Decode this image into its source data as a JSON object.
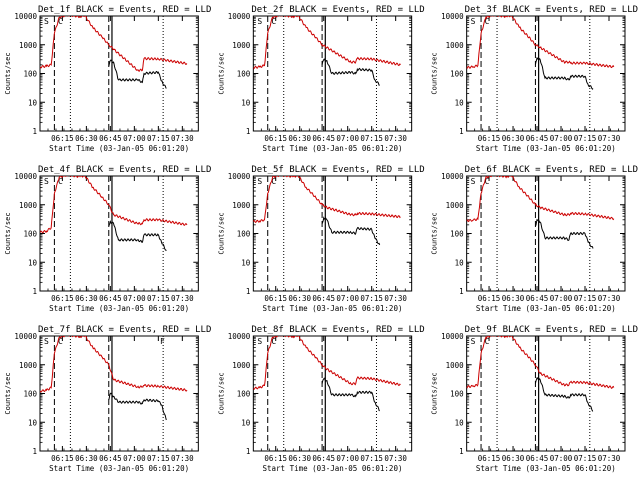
{
  "figure": {
    "background": "#ffffff",
    "events_color": "#000000",
    "lld_color": "#cc0000"
  },
  "chart_data": [
    {
      "type": "line",
      "title": "Det_1f  BLACK = Events, RED = LLD",
      "ylabel": "Counts/sec",
      "xlabel": "Start Time (03-Jan-05 06:01:20)",
      "yscale": "log",
      "ylim": [
        1,
        10000
      ],
      "ytick_labels": [
        "1",
        "10",
        "100",
        "1000",
        "10000"
      ],
      "xtick_labels": [
        "06:15",
        "06:30",
        "06:45",
        "07:00",
        "07:15",
        "07:30"
      ],
      "xlim": [
        "06:01",
        "07:40"
      ],
      "grid": false,
      "annotations": [
        "S",
        "C"
      ],
      "series": [
        {
          "name": "LLD",
          "x": [
            "06:01",
            "06:05",
            "06:08",
            "06:10",
            "06:13",
            "06:18",
            "06:26",
            "06:29",
            "06:34",
            "06:40",
            "06:44",
            "06:47",
            "07:02",
            "07:05",
            "07:06",
            "07:15",
            "07:33"
          ],
          "y": [
            170,
            180,
            200,
            2500,
            9000,
            11000,
            9500,
            10500,
            4000,
            1800,
            1000,
            700,
            130,
            130,
            330,
            320,
            220
          ]
        },
        {
          "name": "Events",
          "x": [
            "06:44",
            "06:45",
            "06:47",
            "06:50",
            "07:02",
            "07:05",
            "07:06",
            "07:15",
            "07:17",
            "07:20"
          ],
          "y": [
            180,
            280,
            250,
            60,
            60,
            50,
            100,
            110,
            55,
            30
          ]
        }
      ],
      "vlines_dashed": [
        "06:10",
        "06:44"
      ],
      "vlines_dotted": [
        "06:20",
        "07:18"
      ],
      "vlines_solid": [
        "06:46"
      ]
    },
    {
      "type": "line",
      "title": "Det_2f  BLACK = Events, RED = LLD",
      "ylabel": "Counts/sec",
      "xlabel": "Start Time (03-Jan-05 06:01:20)",
      "yscale": "log",
      "ylim": [
        1,
        10000
      ],
      "ytick_labels": [
        "1",
        "10",
        "100",
        "1000",
        "10000"
      ],
      "xtick_labels": [
        "06:15",
        "06:30",
        "06:45",
        "07:00",
        "07:15",
        "07:30"
      ],
      "xlim": [
        "06:01",
        "07:40"
      ],
      "grid": false,
      "annotations": [
        "S",
        "C"
      ],
      "series": [
        {
          "name": "LLD",
          "x": [
            "06:01",
            "06:05",
            "06:08",
            "06:10",
            "06:13",
            "06:18",
            "06:26",
            "06:29",
            "06:34",
            "06:40",
            "06:44",
            "06:47",
            "07:02",
            "07:05",
            "07:06",
            "07:15",
            "07:33"
          ],
          "y": [
            160,
            170,
            190,
            2500,
            9000,
            11000,
            9500,
            10500,
            4000,
            1800,
            1000,
            800,
            250,
            250,
            330,
            320,
            200
          ]
        },
        {
          "name": "Events",
          "x": [
            "06:44",
            "06:45",
            "06:47",
            "06:50",
            "07:02",
            "07:05",
            "07:06",
            "07:15",
            "07:17",
            "07:20"
          ],
          "y": [
            200,
            300,
            280,
            100,
            110,
            100,
            140,
            130,
            60,
            40
          ]
        }
      ],
      "vlines_dashed": [
        "06:10",
        "06:44"
      ],
      "vlines_dotted": [
        "06:20",
        "07:18"
      ],
      "vlines_solid": [
        "06:46"
      ]
    },
    {
      "type": "line",
      "title": "Det_3f  BLACK = Events, RED = LLD",
      "ylabel": "Counts/sec",
      "xlabel": "Start Time (03-Jan-05 06:01:20)",
      "yscale": "log",
      "ylim": [
        1,
        10000
      ],
      "ytick_labels": [
        "1",
        "10",
        "100",
        "1000",
        "10000"
      ],
      "xtick_labels": [
        "06:15",
        "06:30",
        "06:45",
        "07:00",
        "07:15",
        "07:30"
      ],
      "xlim": [
        "06:01",
        "07:40"
      ],
      "grid": false,
      "annotations": [
        "S",
        "C"
      ],
      "series": [
        {
          "name": "LLD",
          "x": [
            "06:01",
            "06:05",
            "06:08",
            "06:10",
            "06:13",
            "06:18",
            "06:26",
            "06:29",
            "06:34",
            "06:40",
            "06:44",
            "06:47",
            "07:02",
            "07:05",
            "07:06",
            "07:15",
            "07:33"
          ],
          "y": [
            160,
            170,
            190,
            2500,
            9000,
            11000,
            9500,
            10500,
            4000,
            1800,
            1000,
            800,
            250,
            250,
            230,
            230,
            170
          ]
        },
        {
          "name": "Events",
          "x": [
            "06:44",
            "06:45",
            "06:47",
            "06:50",
            "07:02",
            "07:05",
            "07:06",
            "07:15",
            "07:17",
            "07:20"
          ],
          "y": [
            200,
            350,
            300,
            70,
            70,
            60,
            80,
            80,
            40,
            30
          ]
        }
      ],
      "vlines_dashed": [
        "06:10",
        "06:44"
      ],
      "vlines_dotted": [
        "06:20",
        "07:18"
      ],
      "vlines_solid": [
        "06:46"
      ]
    },
    {
      "type": "line",
      "title": "Det_4f  BLACK = Events, RED = LLD",
      "ylabel": "Counts/sec",
      "xlabel": "Start Time (03-Jan-05 06:01:20)",
      "yscale": "log",
      "ylim": [
        1,
        10000
      ],
      "ytick_labels": [
        "1",
        "10",
        "100",
        "1000",
        "10000"
      ],
      "xtick_labels": [
        "06:15",
        "06:30",
        "06:45",
        "07:00",
        "07:15",
        "07:30"
      ],
      "xlim": [
        "06:01",
        "07:40"
      ],
      "grid": false,
      "annotations": [
        "S",
        "C"
      ],
      "series": [
        {
          "name": "LLD",
          "x": [
            "06:01",
            "06:05",
            "06:08",
            "06:10",
            "06:13",
            "06:18",
            "06:26",
            "06:29",
            "06:34",
            "06:40",
            "06:44",
            "06:47",
            "07:02",
            "07:05",
            "07:06",
            "07:15",
            "07:33"
          ],
          "y": [
            110,
            120,
            160,
            2500,
            9000,
            11000,
            9500,
            10500,
            4000,
            1800,
            1000,
            450,
            220,
            220,
            300,
            300,
            200
          ]
        },
        {
          "name": "Events",
          "x": [
            "06:44",
            "06:45",
            "06:47",
            "06:50",
            "07:02",
            "07:05",
            "07:06",
            "07:15",
            "07:17",
            "07:20"
          ],
          "y": [
            180,
            260,
            220,
            60,
            60,
            50,
            90,
            90,
            50,
            25
          ]
        }
      ],
      "vlines_dashed": [
        "06:10",
        "06:44"
      ],
      "vlines_dotted": [
        "06:20",
        "07:18"
      ],
      "vlines_solid": [
        "06:46"
      ]
    },
    {
      "type": "line",
      "title": "Det_5f  BLACK = Events, RED = LLD",
      "ylabel": "Counts/sec",
      "xlabel": "Start Time (03-Jan-05 06:01:20)",
      "yscale": "log",
      "ylim": [
        1,
        10000
      ],
      "ytick_labels": [
        "1",
        "10",
        "100",
        "1000",
        "10000"
      ],
      "xtick_labels": [
        "06:15",
        "06:30",
        "06:45",
        "07:00",
        "07:15",
        "07:30"
      ],
      "xlim": [
        "06:01",
        "07:40"
      ],
      "grid": false,
      "annotations": [
        "S",
        "C"
      ],
      "series": [
        {
          "name": "LLD",
          "x": [
            "06:01",
            "06:05",
            "06:08",
            "06:10",
            "06:13",
            "06:18",
            "06:26",
            "06:29",
            "06:34",
            "06:40",
            "06:44",
            "06:47",
            "07:02",
            "07:05",
            "07:06",
            "07:15",
            "07:33"
          ],
          "y": [
            260,
            270,
            300,
            2500,
            9000,
            11000,
            9500,
            10500,
            4000,
            1800,
            1000,
            800,
            450,
            450,
            500,
            480,
            380
          ]
        },
        {
          "name": "Events",
          "x": [
            "06:44",
            "06:45",
            "06:47",
            "06:50",
            "07:02",
            "07:05",
            "07:06",
            "07:15",
            "07:17",
            "07:20"
          ],
          "y": [
            220,
            350,
            300,
            110,
            110,
            100,
            150,
            140,
            70,
            40
          ]
        }
      ],
      "vlines_dashed": [
        "06:10",
        "06:44"
      ],
      "vlines_dotted": [
        "06:20",
        "07:18"
      ],
      "vlines_solid": [
        "06:46"
      ]
    },
    {
      "type": "line",
      "title": "Det_6f  BLACK = Events, RED = LLD",
      "ylabel": "Counts/sec",
      "xlabel": "Start Time (03-Jan-05 06:01:20)",
      "yscale": "log",
      "ylim": [
        1,
        10000
      ],
      "ytick_labels": [
        "1",
        "10",
        "100",
        "1000",
        "10000"
      ],
      "xtick_labels": [
        "06:15",
        "06:30",
        "06:45",
        "07:00",
        "07:15",
        "07:30"
      ],
      "xlim": [
        "06:01",
        "07:40"
      ],
      "grid": false,
      "annotations": [
        "S",
        "C"
      ],
      "series": [
        {
          "name": "LLD",
          "x": [
            "06:01",
            "06:05",
            "06:08",
            "06:10",
            "06:13",
            "06:18",
            "06:26",
            "06:29",
            "06:34",
            "06:40",
            "06:44",
            "06:47",
            "07:02",
            "07:05",
            "07:06",
            "07:15",
            "07:33"
          ],
          "y": [
            280,
            290,
            320,
            2500,
            9000,
            11000,
            9500,
            10500,
            4000,
            1800,
            1000,
            800,
            450,
            450,
            500,
            480,
            330
          ]
        },
        {
          "name": "Events",
          "x": [
            "06:44",
            "06:45",
            "06:47",
            "06:50",
            "07:02",
            "07:05",
            "07:06",
            "07:15",
            "07:17",
            "07:20"
          ],
          "y": [
            180,
            300,
            250,
            70,
            70,
            60,
            100,
            100,
            50,
            30
          ]
        }
      ],
      "vlines_dashed": [
        "06:10",
        "06:44"
      ],
      "vlines_dotted": [
        "06:20",
        "07:18"
      ],
      "vlines_solid": [
        "06:46"
      ]
    },
    {
      "type": "line",
      "title": "Det_7f  BLACK = Events, RED = LLD",
      "ylabel": "Counts/sec",
      "xlabel": "Start Time (03-Jan-05 06:01:20)",
      "yscale": "log",
      "ylim": [
        1,
        10000
      ],
      "ytick_labels": [
        "1",
        "10",
        "100",
        "1000",
        "10000"
      ],
      "xtick_labels": [
        "06:15",
        "06:30",
        "06:45",
        "07:00",
        "07:15",
        "07:30"
      ],
      "xlim": [
        "06:01",
        "07:40"
      ],
      "grid": false,
      "annotations": [
        "S",
        "C",
        "F"
      ],
      "series": [
        {
          "name": "LLD",
          "x": [
            "06:01",
            "06:05",
            "06:08",
            "06:10",
            "06:13",
            "06:18",
            "06:26",
            "06:29",
            "06:34",
            "06:40",
            "06:44",
            "06:47",
            "07:02",
            "07:05",
            "07:06",
            "07:15",
            "07:33"
          ],
          "y": [
            120,
            130,
            160,
            2500,
            9000,
            11000,
            9500,
            10500,
            4000,
            1800,
            1000,
            300,
            170,
            170,
            190,
            180,
            130
          ]
        },
        {
          "name": "Events",
          "x": [
            "06:44",
            "06:45",
            "06:47",
            "06:50",
            "07:02",
            "07:05",
            "07:06",
            "07:15",
            "07:17",
            "07:20"
          ],
          "y": [
            60,
            100,
            80,
            50,
            50,
            45,
            60,
            55,
            40,
            12
          ]
        }
      ],
      "vlines_dashed": [
        "06:10",
        "06:44"
      ],
      "vlines_dotted": [
        "06:20",
        "07:18"
      ],
      "vlines_solid": [
        "06:46"
      ]
    },
    {
      "type": "line",
      "title": "Det_8f  BLACK = Events, RED = LLD",
      "ylabel": "Counts/sec",
      "xlabel": "Start Time (03-Jan-05 06:01:20)",
      "yscale": "log",
      "ylim": [
        1,
        10000
      ],
      "ytick_labels": [
        "1",
        "10",
        "100",
        "1000",
        "10000"
      ],
      "xtick_labels": [
        "06:15",
        "06:30",
        "06:45",
        "07:00",
        "07:15",
        "07:30"
      ],
      "xlim": [
        "06:01",
        "07:40"
      ],
      "grid": false,
      "annotations": [
        "S",
        "C"
      ],
      "series": [
        {
          "name": "LLD",
          "x": [
            "06:01",
            "06:05",
            "06:08",
            "06:10",
            "06:13",
            "06:18",
            "06:26",
            "06:29",
            "06:34",
            "06:40",
            "06:44",
            "06:47",
            "07:02",
            "07:05",
            "07:06",
            "07:15",
            "07:33"
          ],
          "y": [
            150,
            160,
            190,
            2500,
            9000,
            11000,
            9500,
            10500,
            4000,
            1800,
            1000,
            700,
            220,
            220,
            350,
            330,
            200
          ]
        },
        {
          "name": "Events",
          "x": [
            "06:44",
            "06:45",
            "06:47",
            "06:50",
            "07:02",
            "07:05",
            "07:06",
            "07:15",
            "07:17",
            "07:20"
          ],
          "y": [
            220,
            320,
            280,
            90,
            90,
            80,
            110,
            110,
            50,
            25
          ]
        }
      ],
      "vlines_dashed": [
        "06:10",
        "06:44"
      ],
      "vlines_dotted": [
        "06:20",
        "07:18"
      ],
      "vlines_solid": [
        "06:46"
      ]
    },
    {
      "type": "line",
      "title": "Det_9f  BLACK = Events, RED = LLD",
      "ylabel": "Counts/sec",
      "xlabel": "Start Time (03-Jan-05 06:01:20)",
      "yscale": "log",
      "ylim": [
        1,
        10000
      ],
      "ytick_labels": [
        "1",
        "10",
        "100",
        "1000",
        "10000"
      ],
      "xtick_labels": [
        "06:15",
        "06:30",
        "06:45",
        "07:00",
        "07:15",
        "07:30"
      ],
      "xlim": [
        "06:01",
        "07:40"
      ],
      "grid": false,
      "annotations": [
        "S",
        "C"
      ],
      "series": [
        {
          "name": "LLD",
          "x": [
            "06:01",
            "06:05",
            "06:08",
            "06:10",
            "06:13",
            "06:18",
            "06:26",
            "06:29",
            "06:34",
            "06:40",
            "06:44",
            "06:47",
            "07:02",
            "07:05",
            "07:06",
            "07:15",
            "07:33"
          ],
          "y": [
            170,
            180,
            200,
            2500,
            9000,
            11000,
            9500,
            10500,
            4000,
            1800,
            1000,
            500,
            200,
            200,
            250,
            240,
            160
          ]
        },
        {
          "name": "Events",
          "x": [
            "06:44",
            "06:45",
            "06:47",
            "06:50",
            "07:02",
            "07:05",
            "07:06",
            "07:15",
            "07:17",
            "07:20"
          ],
          "y": [
            220,
            350,
            300,
            90,
            80,
            70,
            90,
            90,
            45,
            25
          ]
        }
      ],
      "vlines_dashed": [
        "06:10",
        "06:44"
      ],
      "vlines_dotted": [
        "06:20",
        "07:18"
      ],
      "vlines_solid": [
        "06:46"
      ]
    }
  ]
}
